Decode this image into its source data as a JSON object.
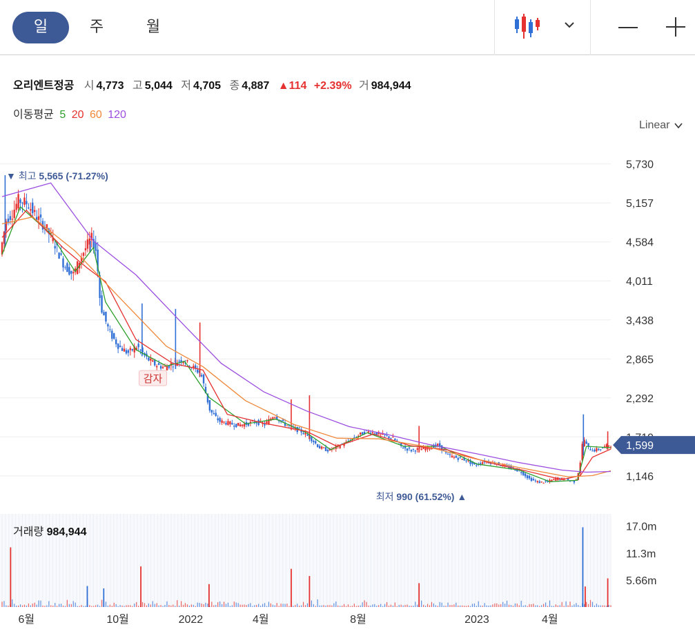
{
  "toolbar": {
    "periods": [
      {
        "label": "일",
        "active": true
      },
      {
        "label": "주",
        "active": false
      },
      {
        "label": "월",
        "active": false
      }
    ],
    "chart_type_icon": "candlestick-icon",
    "dropdown_icon": "chevron-down-icon",
    "zoom_out_icon": "minus-icon",
    "zoom_in_icon": "plus-icon"
  },
  "quote": {
    "name": "오리엔트정공",
    "open_label": "시",
    "open": "4,773",
    "high_label": "고",
    "high": "5,044",
    "low_label": "저",
    "low": "4,705",
    "close_label": "종",
    "close": "4,887",
    "change": "114",
    "change_pct": "+2.39%",
    "volume_label": "거",
    "volume": "984,944"
  },
  "moving_average": {
    "label": "이동평균",
    "periods": [
      {
        "label": "5",
        "color": "#2ca02c"
      },
      {
        "label": "20",
        "color": "#e5312f"
      },
      {
        "label": "60",
        "color": "#f0883a"
      },
      {
        "label": "120",
        "color": "#9b4de0"
      }
    ]
  },
  "scale_selector": {
    "label": "Linear"
  },
  "volume_panel": {
    "label": "거래량",
    "value": "984,944"
  },
  "colors": {
    "up": "#e5312f",
    "down": "#2f6fd6",
    "accent": "#3e5a96",
    "grid": "#eeeeee"
  },
  "chart_data": {
    "type": "candlestick",
    "y_ticks": [
      "5,730",
      "5,157",
      "4,584",
      "4,011",
      "3,438",
      "2,865",
      "2,292",
      "1,719",
      "1,146"
    ],
    "y_tick_values": [
      5730,
      5157,
      4584,
      4011,
      3438,
      2865,
      2292,
      1719,
      1146
    ],
    "ylim": [
      840,
      5960
    ],
    "x_ticks": [
      "6월",
      "10월",
      "2022",
      "4월",
      "8월",
      "2023",
      "4월"
    ],
    "x_tick_positions": [
      0.04,
      0.19,
      0.31,
      0.425,
      0.585,
      0.78,
      0.9
    ],
    "current_price": {
      "label": "1,599",
      "value": 1599
    },
    "high_marker": {
      "label": "최고",
      "value_text": "5,565 (-71.27%)",
      "value": 5565,
      "x": 0.01
    },
    "low_marker": {
      "label": "최저",
      "value_text": "990 (61.52%)",
      "value": 990,
      "x": 0.875
    },
    "annotation": {
      "label": "감자",
      "x": 0.275,
      "value": 2775
    },
    "price_path": [
      [
        0.0,
        4400
      ],
      [
        0.01,
        4900
      ],
      [
        0.02,
        5000
      ],
      [
        0.03,
        5200
      ],
      [
        0.045,
        5150
      ],
      [
        0.06,
        4950
      ],
      [
        0.075,
        4800
      ],
      [
        0.09,
        4550
      ],
      [
        0.105,
        4250
      ],
      [
        0.12,
        4100
      ],
      [
        0.135,
        4400
      ],
      [
        0.15,
        4650
      ],
      [
        0.158,
        4450
      ],
      [
        0.165,
        3650
      ],
      [
        0.18,
        3250
      ],
      [
        0.195,
        3050
      ],
      [
        0.21,
        2950
      ],
      [
        0.225,
        3050
      ],
      [
        0.24,
        2880
      ],
      [
        0.255,
        2780
      ],
      [
        0.27,
        2740
      ],
      [
        0.285,
        2800
      ],
      [
        0.3,
        2860
      ],
      [
        0.315,
        2750
      ],
      [
        0.33,
        2650
      ],
      [
        0.345,
        2100
      ],
      [
        0.36,
        1950
      ],
      [
        0.375,
        1920
      ],
      [
        0.39,
        1890
      ],
      [
        0.405,
        1910
      ],
      [
        0.42,
        1940
      ],
      [
        0.435,
        1900
      ],
      [
        0.45,
        2040
      ],
      [
        0.465,
        1920
      ],
      [
        0.48,
        1850
      ],
      [
        0.495,
        1800
      ],
      [
        0.51,
        1700
      ],
      [
        0.525,
        1560
      ],
      [
        0.54,
        1520
      ],
      [
        0.555,
        1580
      ],
      [
        0.57,
        1640
      ],
      [
        0.585,
        1720
      ],
      [
        0.6,
        1800
      ],
      [
        0.615,
        1780
      ],
      [
        0.63,
        1740
      ],
      [
        0.645,
        1700
      ],
      [
        0.66,
        1570
      ],
      [
        0.675,
        1520
      ],
      [
        0.69,
        1540
      ],
      [
        0.705,
        1560
      ],
      [
        0.72,
        1600
      ],
      [
        0.735,
        1450
      ],
      [
        0.75,
        1410
      ],
      [
        0.765,
        1380
      ],
      [
        0.78,
        1300
      ],
      [
        0.795,
        1360
      ],
      [
        0.81,
        1340
      ],
      [
        0.825,
        1300
      ],
      [
        0.84,
        1260
      ],
      [
        0.855,
        1210
      ],
      [
        0.87,
        1100
      ],
      [
        0.885,
        1050
      ],
      [
        0.9,
        1060
      ],
      [
        0.915,
        1110
      ],
      [
        0.93,
        1090
      ],
      [
        0.945,
        1060
      ],
      [
        0.952,
        1260
      ],
      [
        0.958,
        1720
      ],
      [
        0.965,
        1560
      ],
      [
        0.975,
        1520
      ],
      [
        0.985,
        1540
      ],
      [
        1.0,
        1599
      ]
    ],
    "ma_paths": {
      "ma5": [
        [
          0.0,
          4400
        ],
        [
          0.03,
          5100
        ],
        [
          0.08,
          4700
        ],
        [
          0.12,
          4150
        ],
        [
          0.15,
          4500
        ],
        [
          0.17,
          3700
        ],
        [
          0.22,
          3000
        ],
        [
          0.27,
          2760
        ],
        [
          0.3,
          2830
        ],
        [
          0.34,
          2300
        ],
        [
          0.4,
          1910
        ],
        [
          0.45,
          1980
        ],
        [
          0.5,
          1780
        ],
        [
          0.54,
          1530
        ],
        [
          0.6,
          1780
        ],
        [
          0.66,
          1580
        ],
        [
          0.72,
          1580
        ],
        [
          0.78,
          1320
        ],
        [
          0.85,
          1230
        ],
        [
          0.9,
          1060
        ],
        [
          0.945,
          1080
        ],
        [
          0.96,
          1580
        ],
        [
          1.0,
          1560
        ]
      ],
      "ma20": [
        [
          0.0,
          4650
        ],
        [
          0.04,
          5050
        ],
        [
          0.1,
          4500
        ],
        [
          0.14,
          4200
        ],
        [
          0.17,
          4000
        ],
        [
          0.22,
          3150
        ],
        [
          0.28,
          2800
        ],
        [
          0.33,
          2700
        ],
        [
          0.37,
          2050
        ],
        [
          0.43,
          1920
        ],
        [
          0.5,
          1800
        ],
        [
          0.55,
          1580
        ],
        [
          0.61,
          1760
        ],
        [
          0.67,
          1590
        ],
        [
          0.73,
          1530
        ],
        [
          0.8,
          1340
        ],
        [
          0.86,
          1220
        ],
        [
          0.92,
          1090
        ],
        [
          0.95,
          1150
        ],
        [
          0.97,
          1420
        ],
        [
          1.0,
          1540
        ]
      ],
      "ma60": [
        [
          0.0,
          4850
        ],
        [
          0.05,
          4950
        ],
        [
          0.12,
          4450
        ],
        [
          0.2,
          3700
        ],
        [
          0.27,
          3050
        ],
        [
          0.33,
          2750
        ],
        [
          0.4,
          2250
        ],
        [
          0.48,
          1900
        ],
        [
          0.55,
          1700
        ],
        [
          0.62,
          1690
        ],
        [
          0.7,
          1570
        ],
        [
          0.78,
          1390
        ],
        [
          0.86,
          1250
        ],
        [
          0.93,
          1130
        ],
        [
          0.97,
          1150
        ],
        [
          1.0,
          1220
        ]
      ],
      "ma120": [
        [
          0.0,
          5250
        ],
        [
          0.08,
          5450
        ],
        [
          0.15,
          4600
        ],
        [
          0.22,
          4100
        ],
        [
          0.3,
          3350
        ],
        [
          0.36,
          2800
        ],
        [
          0.43,
          2380
        ],
        [
          0.5,
          2100
        ],
        [
          0.57,
          1870
        ],
        [
          0.63,
          1760
        ],
        [
          0.7,
          1610
        ],
        [
          0.78,
          1470
        ],
        [
          0.85,
          1340
        ],
        [
          0.92,
          1230
        ],
        [
          0.96,
          1200
        ],
        [
          1.0,
          1210
        ]
      ]
    },
    "price_spikes": [
      [
        0.005,
        5565,
        "down"
      ],
      [
        0.145,
        4600,
        "down"
      ],
      [
        0.23,
        3680,
        "down"
      ],
      [
        0.285,
        3600,
        "down"
      ],
      [
        0.325,
        3400,
        "up"
      ],
      [
        0.475,
        2270,
        "up"
      ],
      [
        0.505,
        2330,
        "up"
      ],
      [
        0.685,
        1880,
        "up"
      ],
      [
        0.955,
        2050,
        "down"
      ],
      [
        0.995,
        1800,
        "up"
      ]
    ],
    "volume": {
      "y_ticks": [
        "17.0m",
        "11.3m",
        "5.66m"
      ],
      "y_tick_values": [
        17.0,
        11.3,
        5.66
      ],
      "ylim": [
        0,
        19.5
      ],
      "spikes": [
        [
          0.014,
          12.5,
          "up"
        ],
        [
          0.14,
          4.4,
          "down"
        ],
        [
          0.167,
          3.9,
          "down"
        ],
        [
          0.228,
          8.5,
          "up"
        ],
        [
          0.34,
          4.8,
          "up"
        ],
        [
          0.475,
          8.0,
          "up"
        ],
        [
          0.505,
          6.5,
          "up"
        ],
        [
          0.685,
          5.0,
          "up"
        ],
        [
          0.954,
          16.7,
          "down"
        ],
        [
          0.958,
          4.3,
          "up"
        ],
        [
          0.995,
          6.0,
          "up"
        ]
      ]
    }
  }
}
